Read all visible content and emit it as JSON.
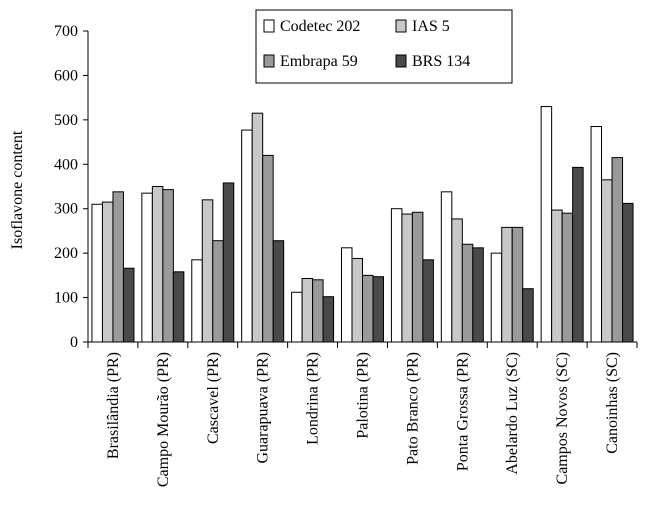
{
  "chart_data": {
    "type": "bar",
    "ylabel": "Isoflavone content",
    "ylim": [
      0,
      700
    ],
    "yticks": [
      0,
      100,
      200,
      300,
      400,
      500,
      600,
      700
    ],
    "legend_position": "top-center",
    "grid": false,
    "categories": [
      "Brasilândia (PR)",
      "Campo Mourão (PR)",
      "Cascavel (PR)",
      "Guarapuava (PR)",
      "Londrina (PR)",
      "Palotina (PR)",
      "Pato Branco (PR)",
      "Ponta Grossa (PR)",
      "Abelardo Luz (SC)",
      "Campos Novos (SC)",
      "Canoinhas (SC)"
    ],
    "series": [
      {
        "name": "Codetec 202",
        "color": "#ffffff",
        "values": [
          310,
          335,
          185,
          477,
          112,
          212,
          300,
          338,
          200,
          530,
          485
        ]
      },
      {
        "name": "IAS 5",
        "color": "#c8c8c8",
        "values": [
          315,
          350,
          320,
          515,
          143,
          188,
          288,
          277,
          258,
          297,
          365
        ]
      },
      {
        "name": "Embrapa 59",
        "color": "#9a9a9a",
        "values": [
          338,
          343,
          228,
          420,
          140,
          150,
          292,
          220,
          258,
          290,
          415
        ]
      },
      {
        "name": "BRS 134",
        "color": "#4a4a4a",
        "values": [
          166,
          158,
          358,
          228,
          102,
          147,
          185,
          212,
          120,
          393,
          312
        ]
      }
    ]
  }
}
